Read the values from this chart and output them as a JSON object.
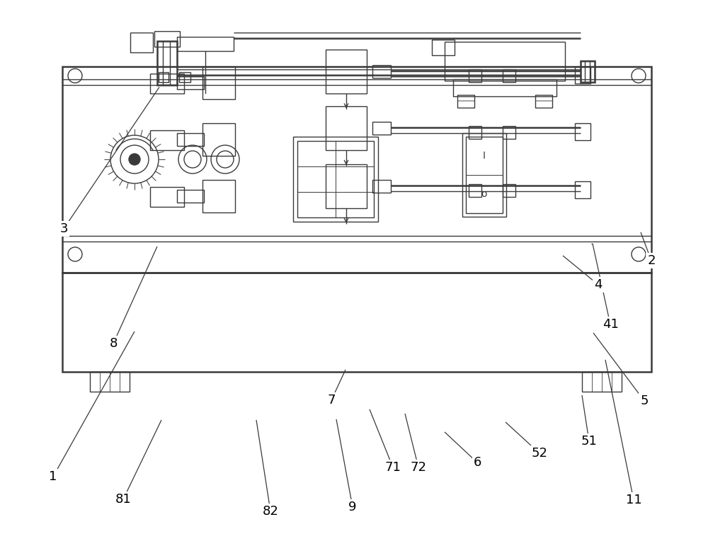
{
  "bg_color": "#ffffff",
  "lc": "#3a3a3a",
  "lw": 1.0,
  "tlw": 1.8,
  "fig_w": 10.0,
  "fig_h": 7.78,
  "label_fs": 13
}
